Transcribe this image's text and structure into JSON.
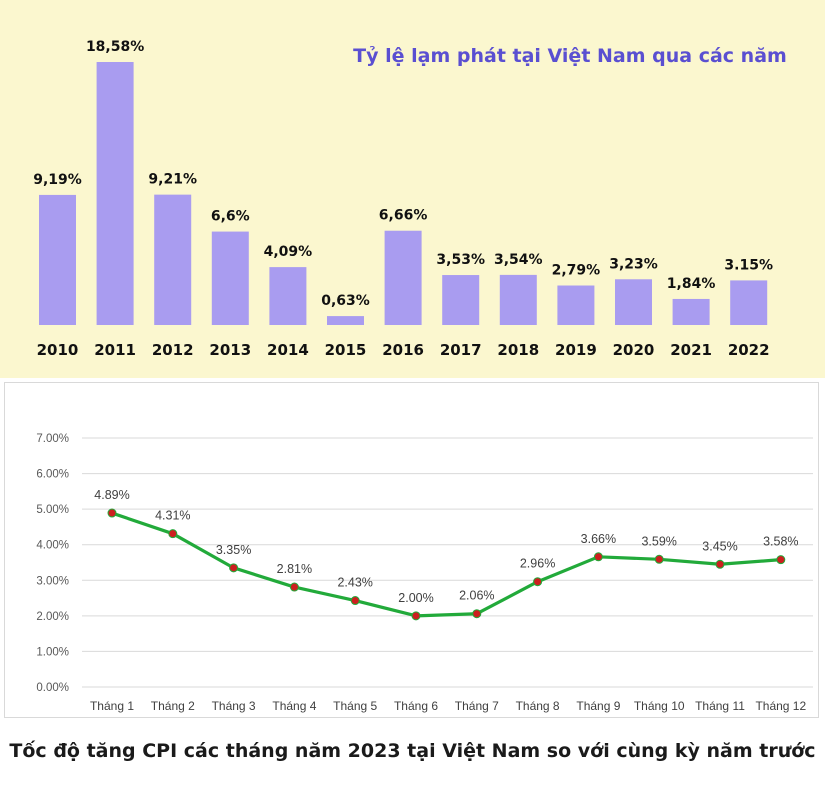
{
  "chart_data": [
    {
      "type": "bar",
      "title": "Tỷ lệ lạm phát tại Việt Nam qua các năm",
      "categories": [
        "2010",
        "2011",
        "2012",
        "2013",
        "2014",
        "2015",
        "2016",
        "2017",
        "2018",
        "2019",
        "2020",
        "2021",
        "2022"
      ],
      "values": [
        9.19,
        18.58,
        9.21,
        6.6,
        4.09,
        0.63,
        6.66,
        3.53,
        3.54,
        2.79,
        3.23,
        1.84,
        3.15
      ],
      "data_labels": [
        "9,19%",
        "18,58%",
        "9,21%",
        "6,6%",
        "4,09%",
        "0,63%",
        "6,66%",
        "3,53%",
        "3,54%",
        "2,79%",
        "3,23%",
        "1,84%",
        "3.15%"
      ],
      "bar_color": "#a99cf0",
      "title_color": "#5a4fd1",
      "ylim": [
        0,
        19.5
      ],
      "grid": false,
      "legend": "none"
    },
    {
      "type": "line",
      "categories": [
        "Tháng 1",
        "Tháng 2",
        "Tháng 3",
        "Tháng 4",
        "Tháng 5",
        "Tháng 6",
        "Tháng 7",
        "Tháng 8",
        "Tháng 9",
        "Tháng 10",
        "Tháng 11",
        "Tháng 12"
      ],
      "values": [
        4.89,
        4.31,
        3.35,
        2.81,
        2.43,
        2.0,
        2.06,
        2.96,
        3.66,
        3.59,
        3.45,
        3.58
      ],
      "data_labels": [
        "4.89%",
        "4.31%",
        "3.35%",
        "2.81%",
        "2.43%",
        "2.00%",
        "2.06%",
        "2.96%",
        "3.66%",
        "3.59%",
        "3.45%",
        "3.58%"
      ],
      "yticks": [
        "0.00%",
        "1.00%",
        "2.00%",
        "3.00%",
        "4.00%",
        "5.00%",
        "6.00%",
        "7.00%"
      ],
      "ylim": [
        0,
        7
      ],
      "line_color": "#22aa3a",
      "marker_color": "#cc1f1f",
      "grid": true,
      "legend": "none"
    }
  ],
  "caption": "Tốc độ tăng CPI các tháng năm 2023 tại Việt Nam so với cùng kỳ năm trước"
}
